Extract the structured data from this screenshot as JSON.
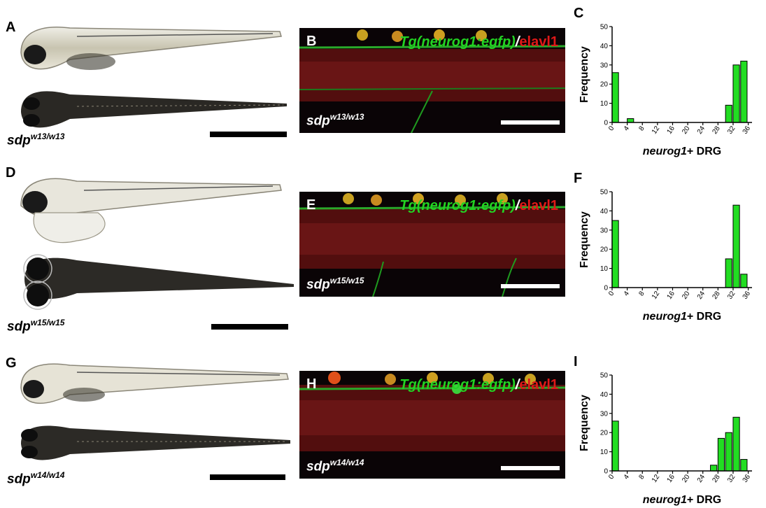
{
  "rows": [
    {
      "fish_letter": "A",
      "micro_letter": "B",
      "chart_letter": "C",
      "genotype_base": "sdp",
      "genotype_sup": "w13/w13",
      "micro_title": {
        "green": "Tg(neurog1:egfp)",
        "slash": "/",
        "red": "elavl1"
      }
    },
    {
      "fish_letter": "D",
      "micro_letter": "E",
      "chart_letter": "F",
      "genotype_base": "sdp",
      "genotype_sup": "w15/w15",
      "micro_title": {
        "green": "Tg(neurog1:egfp)",
        "slash": "/",
        "red": "elavl1"
      }
    },
    {
      "fish_letter": "G",
      "micro_letter": "H",
      "chart_letter": "I",
      "genotype_base": "sdp",
      "genotype_sup": "w14/w14",
      "micro_title": {
        "green": "Tg(neurog1:egfp)",
        "slash": "/",
        "red": "elavl1"
      }
    }
  ],
  "chart_data": [
    {
      "type": "bar",
      "panel": "C",
      "ylabel": "Frequency",
      "xlabel_italic": "neurog1",
      "xlabel_rest": "+ DRG",
      "ylim": [
        0,
        50
      ],
      "yticks": [
        0,
        10,
        20,
        30,
        40,
        50
      ],
      "xlim": [
        0,
        37
      ],
      "xticks": [
        0,
        4,
        8,
        12,
        16,
        20,
        24,
        28,
        32,
        36
      ],
      "bin_width": 1.7,
      "bar_color": "#22dd22",
      "bins": [
        0,
        4,
        30,
        32,
        34
      ],
      "values": [
        26,
        2,
        9,
        30,
        32
      ]
    },
    {
      "type": "bar",
      "panel": "F",
      "ylabel": "Frequency",
      "xlabel_italic": "neurog1",
      "xlabel_rest": "+ DRG",
      "ylim": [
        0,
        50
      ],
      "yticks": [
        0,
        10,
        20,
        30,
        40,
        50
      ],
      "xlim": [
        0,
        37
      ],
      "xticks": [
        0,
        4,
        8,
        12,
        16,
        20,
        24,
        28,
        32,
        36
      ],
      "bin_width": 1.7,
      "bar_color": "#22dd22",
      "bins": [
        0,
        30,
        32,
        34
      ],
      "values": [
        35,
        15,
        43,
        7
      ]
    },
    {
      "type": "bar",
      "panel": "I",
      "ylabel": "Frequency",
      "xlabel_italic": "neurog1",
      "xlabel_rest": "+ DRG",
      "ylim": [
        0,
        50
      ],
      "yticks": [
        0,
        10,
        20,
        30,
        40,
        50
      ],
      "xlim": [
        0,
        37
      ],
      "xticks": [
        0,
        4,
        8,
        12,
        16,
        20,
        24,
        28,
        32,
        36
      ],
      "bin_width": 1.7,
      "bar_color": "#22dd22",
      "bins": [
        0,
        26,
        28,
        30,
        32,
        34
      ],
      "values": [
        26,
        3,
        17,
        20,
        28,
        6
      ]
    }
  ]
}
